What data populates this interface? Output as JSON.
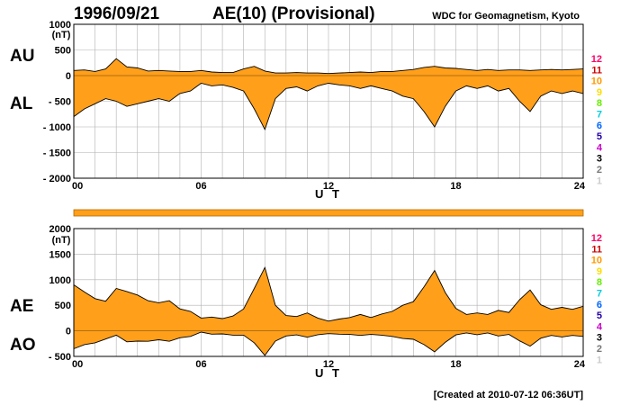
{
  "header": {
    "date": "1996/09/21",
    "title": "AE(10) (Provisional)",
    "source": "WDC for Geomagnetism, Kyoto"
  },
  "footer": {
    "created": "[Created at 2010-07-12 06:36UT]"
  },
  "colors": {
    "fill": "#ff9f1a",
    "line": "#000000",
    "grid": "#b0b0b0",
    "station_counts": {
      "12": "#ff0066",
      "11": "#cc0000",
      "10": "#ff9900",
      "9": "#ffdd00",
      "8": "#66ee00",
      "7": "#00ccdd",
      "6": "#0066ff",
      "5": "#2200aa",
      "4": "#cc00cc",
      "3": "#000000",
      "2": "#777777",
      "1": "#cccccc"
    }
  },
  "station_count_labels": [
    "12",
    "11",
    "10",
    "9",
    "8",
    "7",
    "6",
    "5",
    "4",
    "3",
    "2",
    "1"
  ],
  "chart_data": [
    {
      "type": "area",
      "panel": "AU / AL",
      "xlabel": "U T",
      "ylabel": "(nT)",
      "upper_label": "AU",
      "lower_label": "AL",
      "xlim": [
        0,
        24
      ],
      "ylim": [
        -2000,
        1000
      ],
      "xticks": [
        "00",
        "06",
        "12",
        "18",
        "24"
      ],
      "yticks": [
        "1000",
        "500",
        "0",
        "- 500",
        "- 1000",
        "- 1500",
        "- 2000"
      ],
      "x": [
        0,
        0.5,
        1,
        1.5,
        2,
        2.5,
        3,
        3.5,
        4,
        4.5,
        5,
        5.5,
        6,
        6.5,
        7,
        7.5,
        8,
        8.5,
        9,
        9.5,
        10,
        10.5,
        11,
        11.5,
        12,
        12.5,
        13,
        13.5,
        14,
        14.5,
        15,
        15.5,
        16,
        16.5,
        17,
        17.5,
        18,
        18.5,
        19,
        19.5,
        20,
        20.5,
        21,
        21.5,
        22,
        22.5,
        23,
        23.5,
        24
      ],
      "series": [
        {
          "name": "AU",
          "values": [
            100,
            110,
            80,
            130,
            330,
            170,
            150,
            90,
            100,
            90,
            80,
            80,
            100,
            70,
            60,
            60,
            130,
            180,
            90,
            50,
            50,
            60,
            50,
            50,
            40,
            50,
            60,
            70,
            60,
            80,
            80,
            100,
            120,
            160,
            180,
            150,
            140,
            120,
            100,
            120,
            100,
            110,
            110,
            100,
            110,
            120,
            110,
            120,
            130
          ]
        },
        {
          "name": "AL",
          "values": [
            -800,
            -650,
            -550,
            -450,
            -500,
            -600,
            -550,
            -500,
            -450,
            -500,
            -350,
            -300,
            -150,
            -200,
            -180,
            -230,
            -300,
            -650,
            -1050,
            -450,
            -250,
            -220,
            -300,
            -200,
            -150,
            -180,
            -200,
            -250,
            -200,
            -250,
            -300,
            -400,
            -450,
            -700,
            -1000,
            -600,
            -300,
            -200,
            -250,
            -200,
            -300,
            -250,
            -500,
            -700,
            -400,
            -300,
            -350,
            -300,
            -350
          ]
        }
      ]
    },
    {
      "type": "area",
      "panel": "AE / AO",
      "xlabel": "U T",
      "ylabel": "(nT)",
      "upper_label": "AE",
      "lower_label": "AO",
      "xlim": [
        0,
        24
      ],
      "ylim": [
        -500,
        2000
      ],
      "xticks": [
        "00",
        "06",
        "12",
        "18",
        "24"
      ],
      "yticks": [
        "2000",
        "1500",
        "1000",
        "500",
        "0",
        "- 500"
      ],
      "x": [
        0,
        0.5,
        1,
        1.5,
        2,
        2.5,
        3,
        3.5,
        4,
        4.5,
        5,
        5.5,
        6,
        6.5,
        7,
        7.5,
        8,
        8.5,
        9,
        9.5,
        10,
        10.5,
        11,
        11.5,
        12,
        12.5,
        13,
        13.5,
        14,
        14.5,
        15,
        15.5,
        16,
        16.5,
        17,
        17.5,
        18,
        18.5,
        19,
        19.5,
        20,
        20.5,
        21,
        21.5,
        22,
        22.5,
        23,
        23.5,
        24
      ],
      "series": [
        {
          "name": "AE",
          "values": [
            900,
            760,
            630,
            580,
            830,
            770,
            700,
            590,
            550,
            590,
            430,
            380,
            250,
            270,
            240,
            290,
            430,
            830,
            1240,
            500,
            300,
            280,
            350,
            250,
            190,
            230,
            260,
            320,
            260,
            330,
            380,
            500,
            570,
            860,
            1180,
            750,
            440,
            320,
            350,
            320,
            400,
            360,
            610,
            800,
            510,
            420,
            460,
            420,
            480
          ]
        },
        {
          "name": "AO",
          "values": [
            -350,
            -270,
            -235,
            -160,
            -85,
            -215,
            -200,
            -205,
            -175,
            -205,
            -135,
            -110,
            -25,
            -65,
            -60,
            -85,
            -85,
            -235,
            -480,
            -200,
            -100,
            -80,
            -125,
            -75,
            -55,
            -65,
            -70,
            -90,
            -70,
            -85,
            -110,
            -150,
            -165,
            -270,
            -410,
            -225,
            -80,
            -40,
            -75,
            -40,
            -100,
            -70,
            -195,
            -300,
            -145,
            -90,
            -120,
            -90,
            -110
          ]
        }
      ]
    }
  ]
}
